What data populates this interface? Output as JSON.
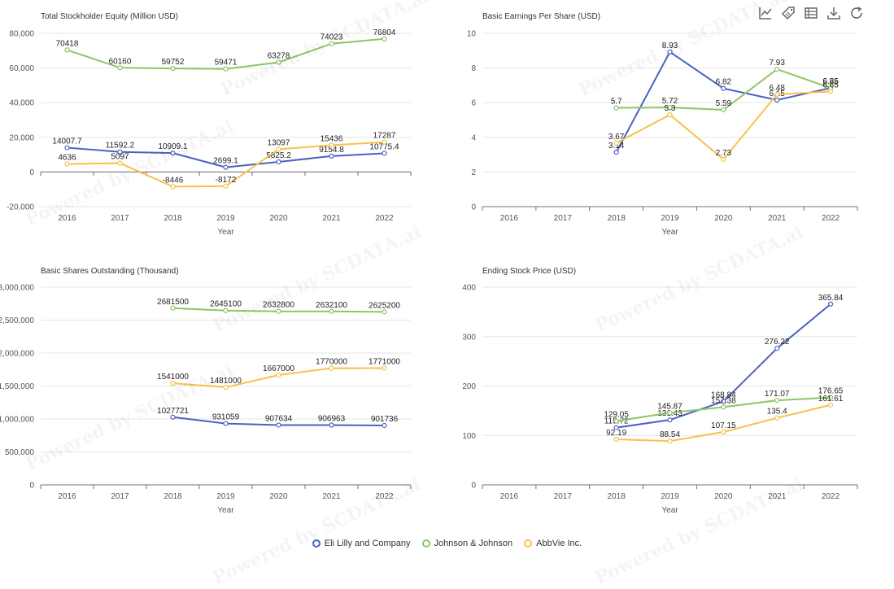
{
  "toolbar": {
    "icons": [
      "line-chart-icon",
      "tag-icon",
      "data-view-icon",
      "download-icon",
      "refresh-icon"
    ]
  },
  "watermark": "Powered by SCDATA.ai",
  "legend": {
    "items": [
      {
        "name": "Eli Lilly and Company",
        "color": "#4a60c4"
      },
      {
        "name": "Johnson & Johnson",
        "color": "#8cc665"
      },
      {
        "name": "AbbVie Inc.",
        "color": "#f8c14a"
      }
    ]
  },
  "chart_data": [
    {
      "type": "line",
      "title": "Total Stockholder Equity (Million USD)",
      "xlabel": "Year",
      "ylabel": "",
      "categories": [
        "2016",
        "2017",
        "2018",
        "2019",
        "2020",
        "2021",
        "2022"
      ],
      "ylim": [
        -20000,
        80000
      ],
      "yticks": [
        -20000,
        0,
        20000,
        40000,
        60000,
        80000
      ],
      "ytick_labels": [
        "-20,000",
        "0",
        "20,000",
        "40,000",
        "60,000",
        "80,000"
      ],
      "series": [
        {
          "name": "Eli Lilly and Company",
          "color": "#4a60c4",
          "values": [
            14007.7,
            11592.2,
            10909.1,
            2699.1,
            5825.2,
            9154.8,
            10775.4
          ]
        },
        {
          "name": "Johnson & Johnson",
          "color": "#8cc665",
          "values": [
            70418,
            60160,
            59752,
            59471,
            63278,
            74023,
            76804
          ]
        },
        {
          "name": "AbbVie Inc.",
          "color": "#f8c14a",
          "values": [
            4636,
            5097,
            -8446,
            -8172,
            13097,
            15436,
            17287
          ]
        }
      ]
    },
    {
      "type": "line",
      "title": "Basic Earnings Per Share (USD)",
      "xlabel": "Year",
      "ylabel": "",
      "categories": [
        "2016",
        "2017",
        "2018",
        "2019",
        "2020",
        "2021",
        "2022"
      ],
      "ylim": [
        0,
        10
      ],
      "yticks": [
        0,
        2,
        4,
        6,
        8,
        10
      ],
      "ytick_labels": [
        "0",
        "2",
        "4",
        "6",
        "8",
        "10"
      ],
      "series": [
        {
          "name": "Eli Lilly and Company",
          "color": "#4a60c4",
          "values": [
            null,
            null,
            3.14,
            8.93,
            6.82,
            6.15,
            6.85
          ]
        },
        {
          "name": "Johnson & Johnson",
          "color": "#8cc665",
          "values": [
            null,
            null,
            5.7,
            5.72,
            5.59,
            7.93,
            6.85
          ]
        },
        {
          "name": "AbbVie Inc.",
          "color": "#f8c14a",
          "values": [
            null,
            null,
            3.67,
            5.3,
            2.73,
            6.48,
            6.65
          ]
        }
      ]
    },
    {
      "type": "line",
      "title": "Basic Shares Outstanding (Thousand)",
      "xlabel": "Year",
      "ylabel": "",
      "categories": [
        "2016",
        "2017",
        "2018",
        "2019",
        "2020",
        "2021",
        "2022"
      ],
      "ylim": [
        0,
        3000000
      ],
      "yticks": [
        0,
        500000,
        1000000,
        1500000,
        2000000,
        2500000,
        3000000
      ],
      "ytick_labels": [
        "0",
        "500,000",
        "1,000,000",
        "1,500,000",
        "2,000,000",
        "2,500,000",
        "3,000,000"
      ],
      "series": [
        {
          "name": "Eli Lilly and Company",
          "color": "#4a60c4",
          "values": [
            null,
            null,
            1027721,
            931059,
            907634,
            906963,
            901736
          ]
        },
        {
          "name": "Johnson & Johnson",
          "color": "#8cc665",
          "values": [
            null,
            null,
            2681500,
            2645100,
            2632800,
            2632100,
            2625200
          ]
        },
        {
          "name": "AbbVie Inc.",
          "color": "#f8c14a",
          "values": [
            null,
            null,
            1541000,
            1481000,
            1667000,
            1770000,
            1771000
          ]
        }
      ]
    },
    {
      "type": "line",
      "title": "Ending Stock Price (USD)",
      "xlabel": "Year",
      "ylabel": "",
      "categories": [
        "2016",
        "2017",
        "2018",
        "2019",
        "2020",
        "2021",
        "2022"
      ],
      "ylim": [
        0,
        400
      ],
      "yticks": [
        0,
        100,
        200,
        300,
        400
      ],
      "ytick_labels": [
        "0",
        "100",
        "200",
        "300",
        "400"
      ],
      "series": [
        {
          "name": "Eli Lilly and Company",
          "color": "#4a60c4",
          "values": [
            null,
            null,
            115.72,
            131.43,
            168.84,
            276.22,
            365.84
          ]
        },
        {
          "name": "Johnson & Johnson",
          "color": "#8cc665",
          "values": [
            null,
            null,
            129.05,
            145.87,
            157.38,
            171.07,
            176.65
          ]
        },
        {
          "name": "AbbVie Inc.",
          "color": "#f8c14a",
          "values": [
            null,
            null,
            92.19,
            88.54,
            107.15,
            135.4,
            161.61
          ]
        }
      ]
    }
  ]
}
